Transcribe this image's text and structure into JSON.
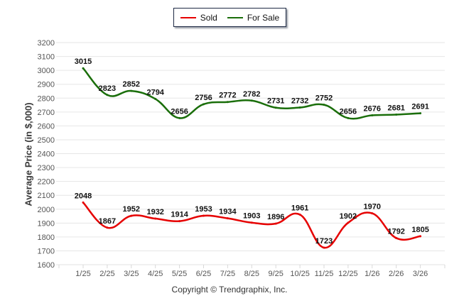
{
  "legend": {
    "items": [
      {
        "label": "Sold",
        "color": "#e60000"
      },
      {
        "label": "For Sale",
        "color": "#1a6e0a"
      }
    ]
  },
  "footer": {
    "copyright": "Copyright © Trendgraphix, Inc."
  },
  "chart_data": {
    "type": "line",
    "title": "",
    "xlabel": "",
    "ylabel": "Average Price (in $,000)",
    "ylim": [
      1600,
      3200
    ],
    "yticks": [
      1600,
      1700,
      1800,
      1900,
      2000,
      2100,
      2200,
      2300,
      2400,
      2500,
      2600,
      2700,
      2800,
      2900,
      3000,
      3100,
      3200
    ],
    "grid": true,
    "legend_position": "top-center",
    "categories": [
      "1/25",
      "2/25",
      "3/25",
      "4/25",
      "5/25",
      "6/25",
      "7/25",
      "8/25",
      "9/25",
      "10/25",
      "11/25",
      "12/25",
      "1/26",
      "2/26",
      "3/26"
    ],
    "series": [
      {
        "name": "Sold",
        "color": "#e60000",
        "values": [
          2048,
          1867,
          1952,
          1932,
          1914,
          1953,
          1934,
          1903,
          1896,
          1961,
          1723,
          1902,
          1970,
          1792,
          1805
        ]
      },
      {
        "name": "For Sale",
        "color": "#1a6e0a",
        "values": [
          3015,
          2823,
          2852,
          2794,
          2656,
          2756,
          2772,
          2782,
          2731,
          2732,
          2752,
          2656,
          2676,
          2681,
          2691
        ]
      }
    ]
  }
}
